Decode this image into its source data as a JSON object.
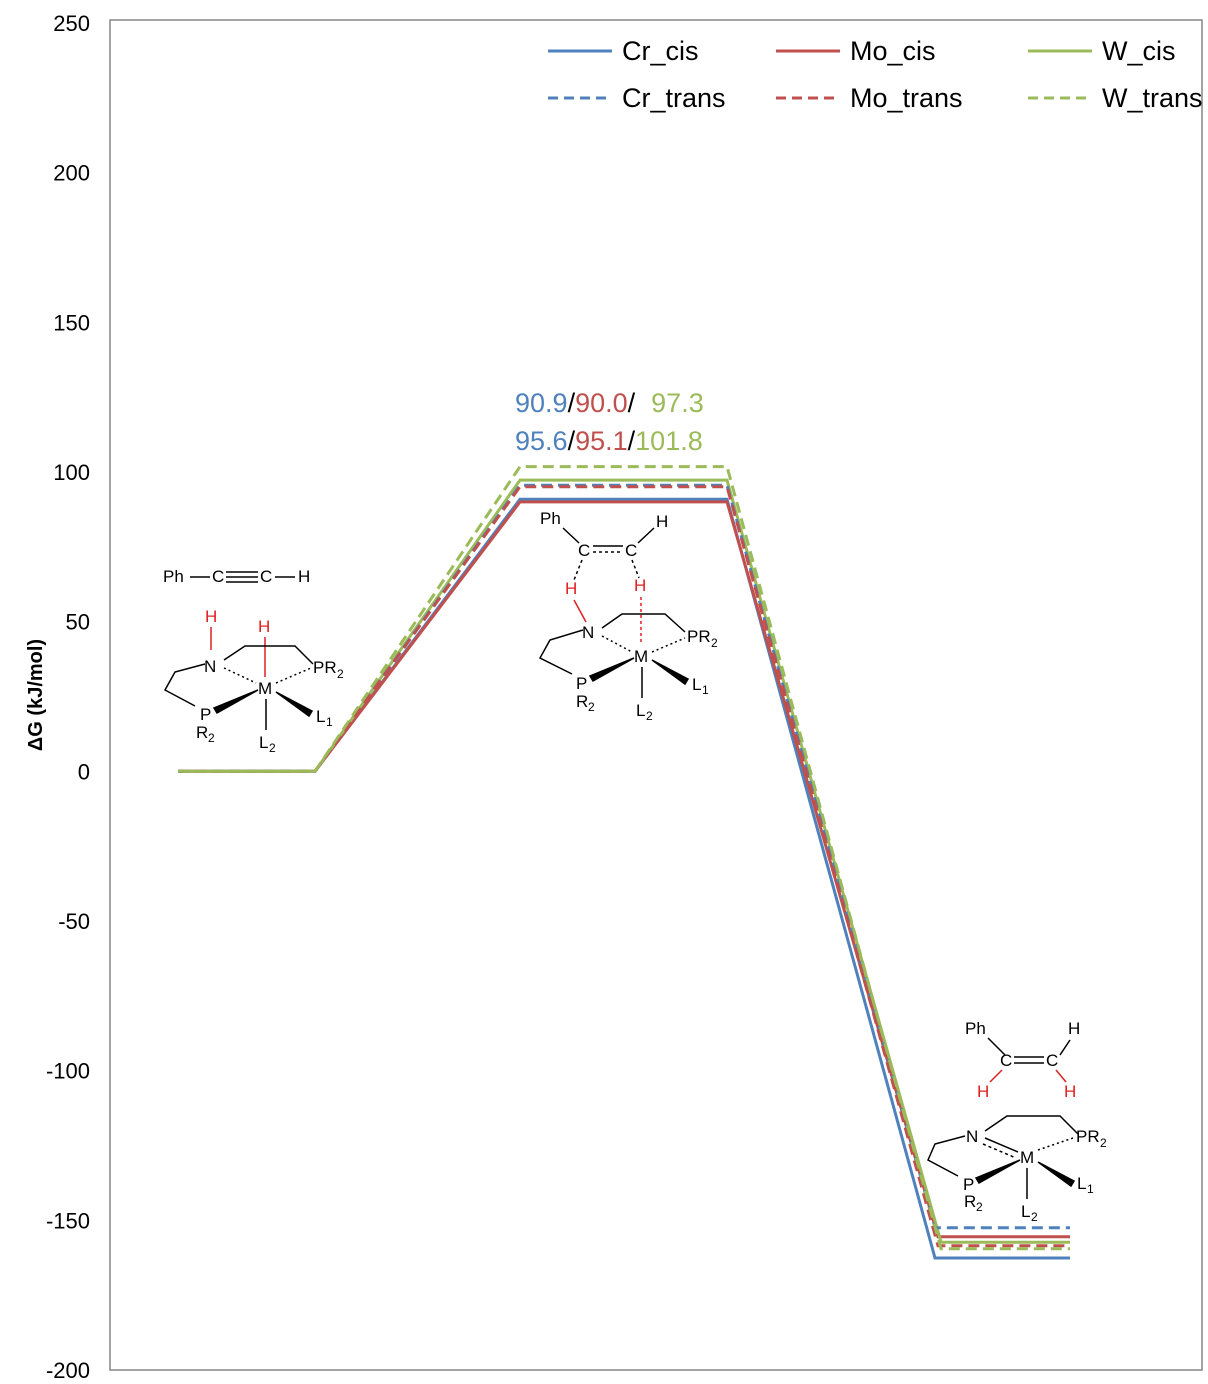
{
  "chart_data": {
    "type": "line",
    "ylabel": "ΔG (kJ/mol)",
    "ylim": [
      -200,
      250
    ],
    "yticks": [
      250,
      200,
      150,
      100,
      50,
      0,
      -50,
      -100,
      -150,
      -200
    ],
    "xlabel": "",
    "grid": false,
    "legend_position": "top-right",
    "stages": [
      "reactant",
      "transition-state",
      "product"
    ],
    "series": [
      {
        "name": "Cr_cis",
        "color": "#4f81bd",
        "dash": "solid",
        "values": [
          0,
          90.9,
          -162.6
        ]
      },
      {
        "name": "Mo_cis",
        "color": "#c0504d",
        "dash": "solid",
        "values": [
          0,
          90.0,
          -155.5
        ]
      },
      {
        "name": "W_cis",
        "color": "#9bbb59",
        "dash": "solid",
        "values": [
          0,
          97.3,
          -157.3
        ]
      },
      {
        "name": "Cr_trans",
        "color": "#4f81bd",
        "dash": "dashed",
        "values": [
          0,
          95.6,
          -152.5
        ]
      },
      {
        "name": "Mo_trans",
        "color": "#c0504d",
        "dash": "dashed",
        "values": [
          0,
          95.1,
          -158.5
        ]
      },
      {
        "name": "W_trans",
        "color": "#9bbb59",
        "dash": "dashed",
        "values": [
          0,
          101.8,
          -159.5
        ]
      }
    ],
    "annotations": {
      "row1": {
        "cr": "90.9",
        "sep1": "/",
        "mo": "90.0",
        "sep2": "/",
        "w": "97.3"
      },
      "row2": {
        "cr": "95.6",
        "sep1": "/",
        "mo": "95.1",
        "sep2": "/",
        "w": "101.8"
      }
    },
    "structures": {
      "reactant": {
        "ph": "Ph",
        "c": "C",
        "h": "H",
        "n": "N",
        "m": "M",
        "p": "P",
        "pr": "PR",
        "r": "R",
        "l": "L",
        "sub1": "1",
        "sub2": "2"
      },
      "ts": {
        "ph": "Ph",
        "c": "C",
        "h": "H",
        "n": "N",
        "m": "M",
        "p": "P",
        "pr": "PR",
        "r": "R",
        "l": "L",
        "sub1": "1",
        "sub2": "2"
      },
      "product": {
        "ph": "Ph",
        "c": "C",
        "h": "H",
        "n": "N",
        "m": "M",
        "p": "P",
        "pr": "PR",
        "r": "R",
        "l": "L",
        "sub1": "1",
        "sub2": "2"
      }
    }
  }
}
